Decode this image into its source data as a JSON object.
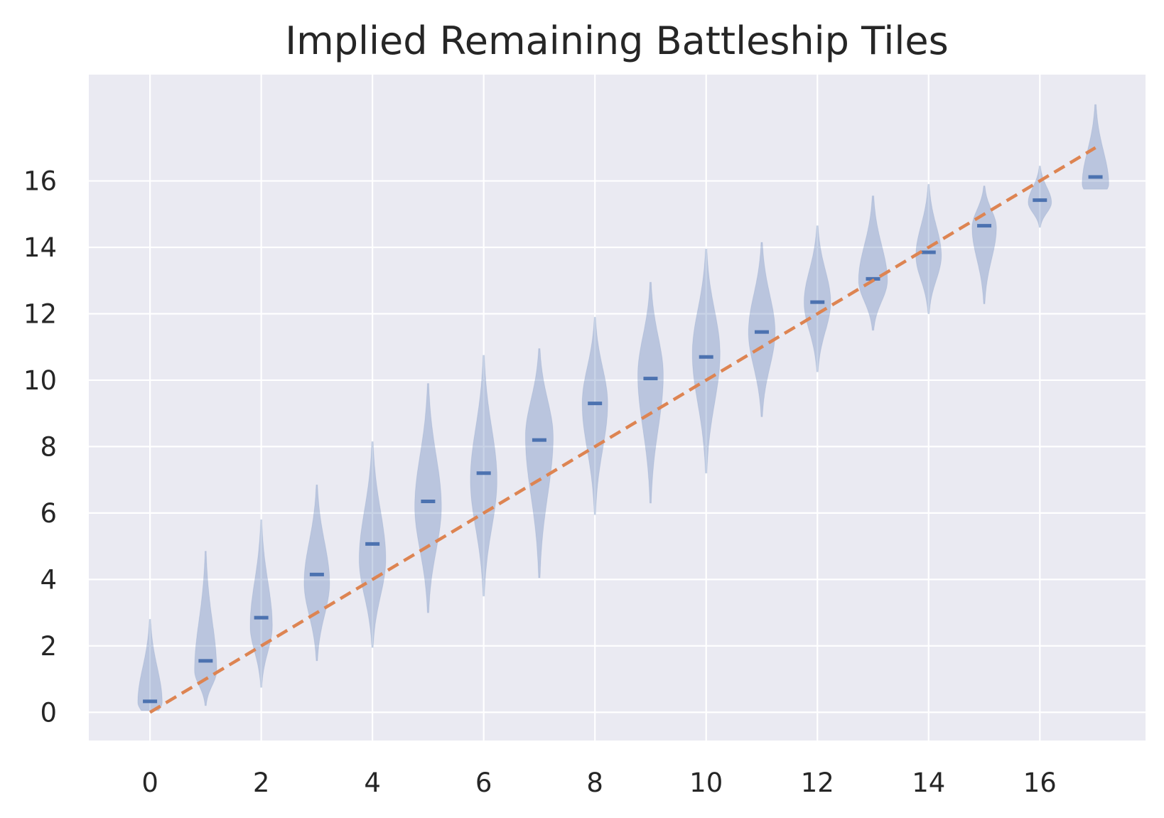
{
  "chart_data": {
    "type": "violin",
    "title": "Implied Remaining Battleship Tiles",
    "xlabel": "",
    "ylabel": "",
    "xlim": [
      -1.1,
      17.9
    ],
    "ylim": [
      -0.85,
      19.2
    ],
    "x_ticks": [
      0,
      2,
      4,
      6,
      8,
      10,
      12,
      14,
      16
    ],
    "y_ticks": [
      0,
      2,
      4,
      6,
      8,
      10,
      12,
      14,
      16
    ],
    "grid": true,
    "background_color": "#EAEAF2",
    "violin_color": "#4C72B0",
    "reference_line_color": "#DD8452",
    "reference_line": {
      "style": "dashed",
      "x": [
        0,
        17
      ],
      "y": [
        0,
        17
      ]
    },
    "violins": [
      {
        "x": 0,
        "min": 0.05,
        "max": 2.8,
        "center": 0.33,
        "peak": 0.3,
        "width": 0.22
      },
      {
        "x": 1,
        "min": 0.2,
        "max": 4.85,
        "center": 1.55,
        "peak": 1.25,
        "width": 0.2
      },
      {
        "x": 2,
        "min": 0.75,
        "max": 5.8,
        "center": 2.85,
        "peak": 2.6,
        "width": 0.2
      },
      {
        "x": 3,
        "min": 1.55,
        "max": 6.85,
        "center": 4.15,
        "peak": 3.9,
        "width": 0.23
      },
      {
        "x": 4,
        "min": 1.95,
        "max": 8.15,
        "center": 5.07,
        "peak": 4.6,
        "width": 0.24
      },
      {
        "x": 5,
        "min": 3.0,
        "max": 9.9,
        "center": 6.35,
        "peak": 6.2,
        "width": 0.24
      },
      {
        "x": 6,
        "min": 3.5,
        "max": 10.75,
        "center": 7.2,
        "peak": 7.0,
        "width": 0.24
      },
      {
        "x": 7,
        "min": 4.05,
        "max": 10.95,
        "center": 8.2,
        "peak": 8.3,
        "width": 0.25
      },
      {
        "x": 8,
        "min": 5.95,
        "max": 11.9,
        "center": 9.3,
        "peak": 9.3,
        "width": 0.23
      },
      {
        "x": 9,
        "min": 6.3,
        "max": 12.95,
        "center": 10.05,
        "peak": 10.15,
        "width": 0.23
      },
      {
        "x": 10,
        "min": 7.2,
        "max": 13.95,
        "center": 10.7,
        "peak": 10.8,
        "width": 0.25
      },
      {
        "x": 11,
        "min": 8.9,
        "max": 14.15,
        "center": 11.45,
        "peak": 11.45,
        "width": 0.24
      },
      {
        "x": 12,
        "min": 10.25,
        "max": 14.65,
        "center": 12.35,
        "peak": 12.35,
        "width": 0.24
      },
      {
        "x": 13,
        "min": 11.5,
        "max": 15.55,
        "center": 13.05,
        "peak": 13.0,
        "width": 0.26
      },
      {
        "x": 14,
        "min": 12.0,
        "max": 15.9,
        "center": 13.85,
        "peak": 13.75,
        "width": 0.23
      },
      {
        "x": 15,
        "min": 12.3,
        "max": 15.85,
        "center": 14.65,
        "peak": 14.6,
        "width": 0.22
      },
      {
        "x": 16,
        "min": 14.6,
        "max": 16.45,
        "center": 15.42,
        "peak": 15.35,
        "width": 0.21
      },
      {
        "x": 17,
        "min": 15.75,
        "max": 18.3,
        "center": 16.12,
        "peak": 15.9,
        "width": 0.24
      }
    ]
  }
}
